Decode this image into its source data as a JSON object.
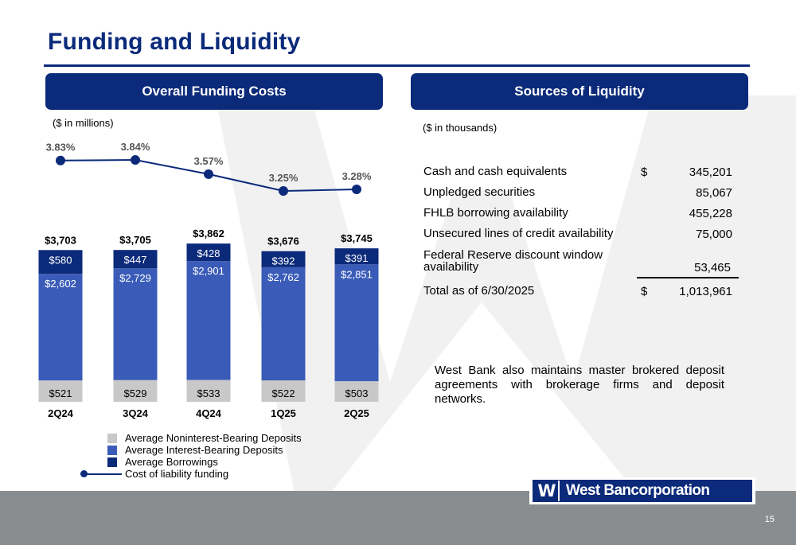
{
  "page": {
    "title": "Funding and Liquidity",
    "page_number": "15"
  },
  "left_panel": {
    "header": "Overall Funding Costs",
    "units": "($ in millions)"
  },
  "right_panel": {
    "header": "Sources of Liquidity",
    "units": "($ in thousands)",
    "rows": [
      {
        "label": "Cash and cash equivalents",
        "dollar": "$",
        "value": "345,201"
      },
      {
        "label": "Unpledged securities",
        "dollar": "",
        "value": "85,067"
      },
      {
        "label": "FHLB borrowing availability",
        "dollar": "",
        "value": "455,228"
      },
      {
        "label": "Unsecured lines of credit availability",
        "dollar": "",
        "value": "75,000"
      },
      {
        "label": "Federal Reserve discount window availability",
        "dollar": "",
        "value": "53,465"
      }
    ],
    "total": {
      "label": "Total as of 6/30/2025",
      "dollar": "$",
      "value": "1,013,961"
    },
    "note": "West Bank also maintains master brokered deposit agreements with brokerage firms and deposit networks."
  },
  "logo": {
    "mark": "W",
    "name": "West Bancorporation"
  },
  "chart_data": {
    "type": "bar",
    "stacked": true,
    "categories": [
      "2Q24",
      "3Q24",
      "4Q24",
      "1Q25",
      "2Q25"
    ],
    "series": [
      {
        "name": "Average Noninterest-Bearing Deposits",
        "color": "#c8c8c8",
        "values": [
          521,
          529,
          533,
          522,
          503
        ],
        "labels": [
          "$521",
          "$529",
          "$533",
          "$522",
          "$503"
        ]
      },
      {
        "name": "Average Interest-Bearing Deposits",
        "color": "#3a5cb8",
        "values": [
          2602,
          2729,
          2901,
          2762,
          2851
        ],
        "labels": [
          "$2,602",
          "$2,729",
          "$2,901",
          "$2,762",
          "$2,851"
        ]
      },
      {
        "name": "Average Borrowings",
        "color": "#0b2a7a",
        "values": [
          580,
          447,
          428,
          392,
          391
        ],
        "labels": [
          "$580",
          "$447",
          "$428",
          "$392",
          "$391"
        ]
      }
    ],
    "totals": [
      3703,
      3705,
      3862,
      3676,
      3745
    ],
    "total_labels": [
      "$3,703",
      "$3,705",
      "$3,862",
      "$3,676",
      "$3,745"
    ],
    "line_series": {
      "name": "Cost of liability funding",
      "color": "#0b2a7a",
      "values": [
        3.83,
        3.84,
        3.57,
        3.25,
        3.28
      ],
      "labels": [
        "3.83%",
        "3.84%",
        "3.57%",
        "3.25%",
        "3.28%"
      ]
    },
    "legend_position": "bottom",
    "grid": false
  }
}
